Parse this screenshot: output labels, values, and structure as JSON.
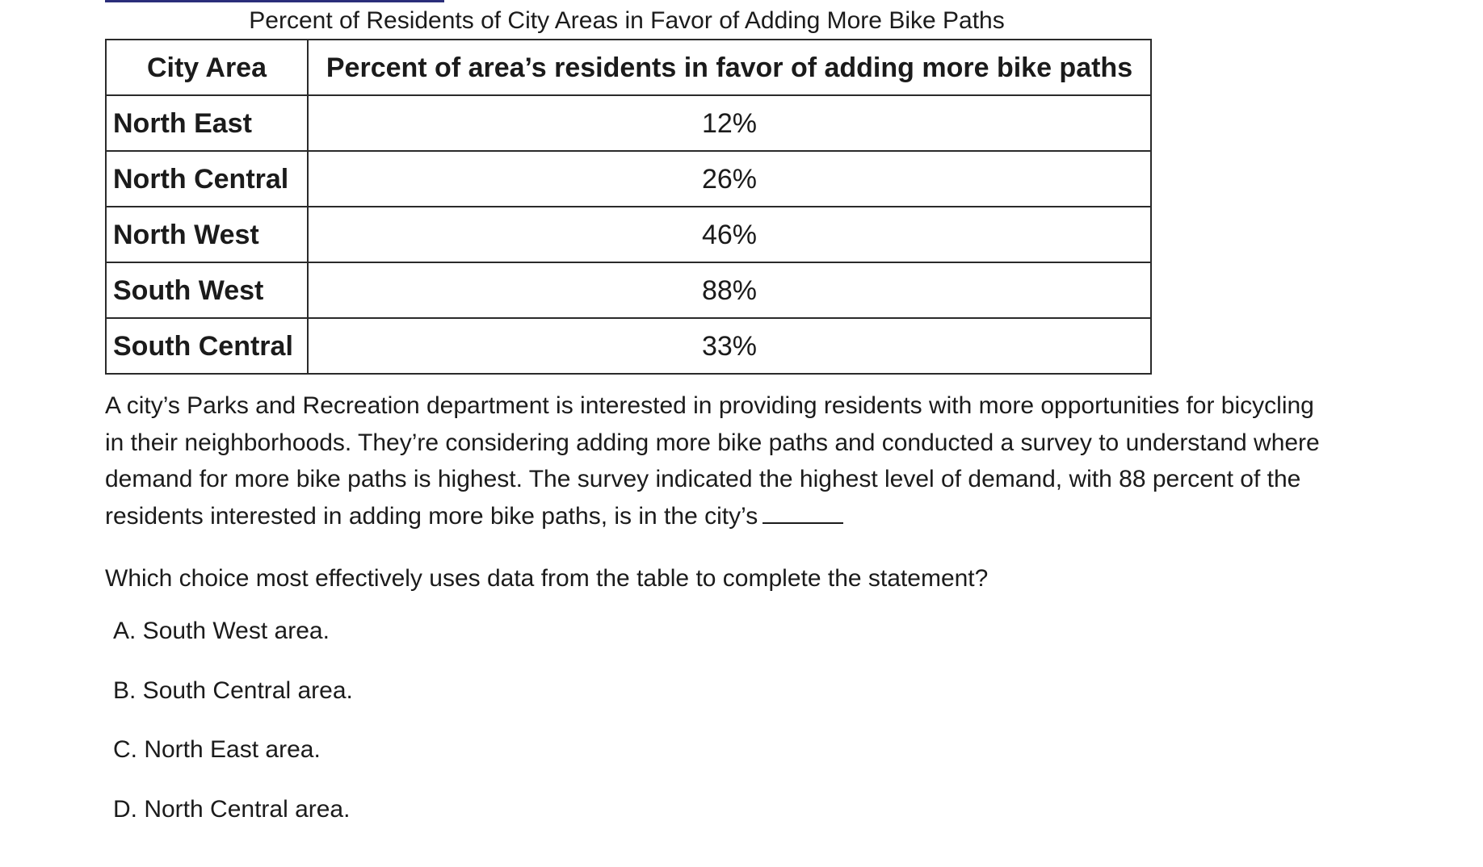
{
  "table": {
    "caption": "Percent of Residents of City Areas in Favor of Adding More Bike Paths",
    "headers": [
      "City Area",
      "Percent of area’s residents in favor of adding more bike paths"
    ],
    "rows": [
      {
        "area": "North East",
        "percent": "12%"
      },
      {
        "area": "North Central",
        "percent": "26%"
      },
      {
        "area": "North West",
        "percent": "46%"
      },
      {
        "area": "South West",
        "percent": "88%"
      },
      {
        "area": "South Central",
        "percent": "33%"
      }
    ]
  },
  "passage": {
    "lines": [
      "A city’s Parks and Recreation department is interested in providing residents with more opportunities for bicycling",
      "in their neighborhoods. They’re considering adding more bike paths and conducted a survey to understand where",
      "demand for more bike paths is highest. The survey indicated the highest level of demand, with 88 percent of the",
      "residents interested in adding more bike paths, is in the city’s"
    ]
  },
  "question": "Which choice most effectively uses data from the table to complete the statement?",
  "choices": [
    "A. South West area.",
    "B. South Central area.",
    "C. North East area.",
    "D. North Central area."
  ]
}
